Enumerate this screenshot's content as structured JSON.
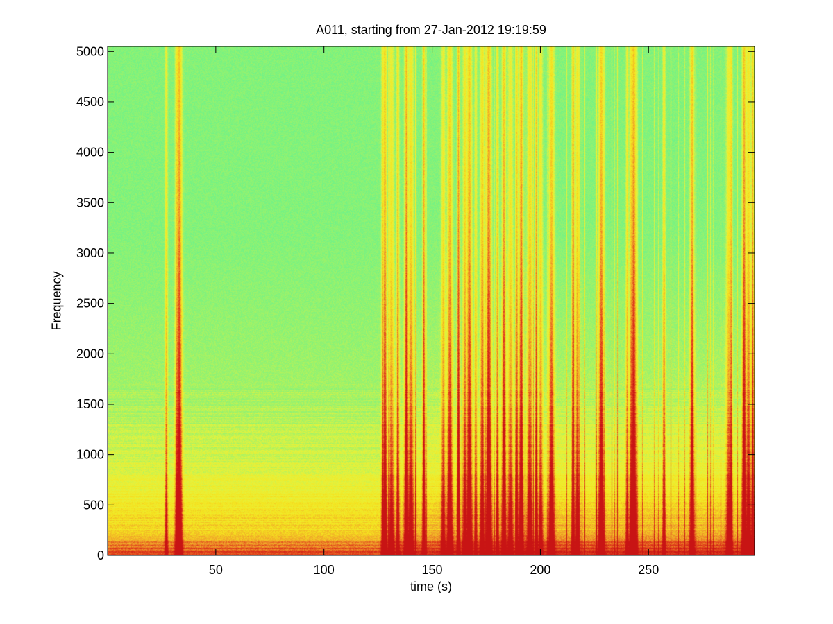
{
  "chart_data": {
    "type": "heatmap",
    "title": "A011, starting from 27-Jan-2012 19:19:59",
    "xlabel": "time (s)",
    "ylabel": "Frequency",
    "xlim": [
      0,
      299
    ],
    "ylim": [
      0,
      5050
    ],
    "x_ticks": [
      50,
      100,
      150,
      200,
      250
    ],
    "y_ticks": [
      0,
      500,
      1000,
      1500,
      2000,
      2500,
      3000,
      3500,
      4000,
      4500,
      5000
    ],
    "grid": false,
    "colormap": [
      "#6cf28a",
      "#9ff269",
      "#e6f23c",
      "#f5e51f",
      "#f0a22a",
      "#e0401c",
      "#c81414"
    ],
    "broadband_events_s": [
      27,
      32,
      33,
      127,
      128,
      131,
      134,
      138,
      140,
      146,
      155,
      158,
      162,
      165,
      167,
      170,
      173,
      176,
      180,
      183,
      186,
      189,
      191,
      195,
      198,
      200,
      205,
      215,
      217,
      228,
      240,
      242,
      243,
      257,
      270,
      287,
      288,
      294,
      296,
      298
    ],
    "low_frequency_band_hz": [
      0,
      1700
    ],
    "high_frequency_background": "green"
  }
}
